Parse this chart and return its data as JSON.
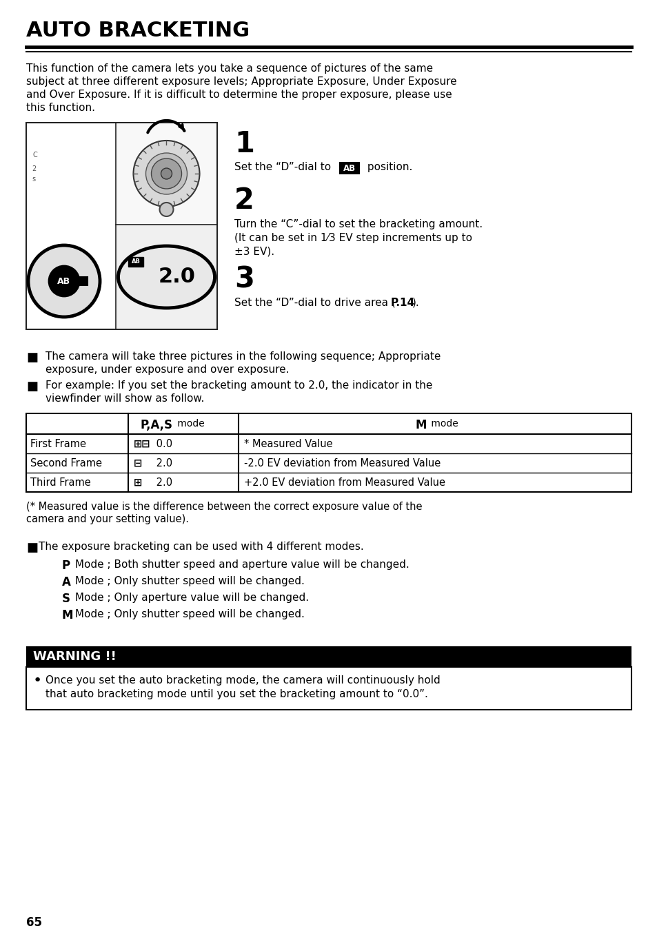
{
  "title": "AUTO BRACKETING",
  "bg_color": "#ffffff",
  "page_number": "65",
  "intro_lines": [
    "This function of the camera lets you take a sequence of pictures of the same",
    "subject at three different exposure levels; Appropriate Exposure, Under Exposure",
    "and Over Exposure. If it is difficult to determine the proper exposure, please use",
    "this function."
  ],
  "step1_num": "1",
  "step1_pre": "Set the “D”-dial to ",
  "step1_ab": "AB",
  "step1_post": " position.",
  "step2_num": "2",
  "step2_lines": [
    "Turn the “C”-dial to set the bracketing amount.",
    "(It can be set in 1⁄3 EV step increments up to",
    "±3 EV)."
  ],
  "step3_num": "3",
  "step3_pre": "Set the “D”-dial to drive area (",
  "step3_bold": "P.14",
  "step3_post": ").",
  "bullet1_lines": [
    "The camera will take three pictures in the following sequence; Appropriate",
    "exposure, under exposure and over exposure."
  ],
  "bullet2_lines": [
    "For example: If you set the bracketing amount to 2.0, the indicator in the",
    "viewfinder will show as follow."
  ],
  "table_col2_bold": "P,A,S",
  "table_col2_normal": " mode",
  "table_col3_bold": "M",
  "table_col3_normal": " mode",
  "table_rows": [
    [
      "First Frame",
      "* Measured Value"
    ],
    [
      "Second Frame",
      "-2.0 EV deviation from Measured Value"
    ],
    [
      "Third Frame",
      "+2.0 EV deviation from Measured Value"
    ]
  ],
  "footnote_lines": [
    "(* Measured value is the difference between the correct exposure value of the",
    "camera and your setting value)."
  ],
  "bullet3_intro": "The exposure bracketing can be used with 4 different modes.",
  "modes": [
    [
      "P",
      " Mode ; Both shutter speed and aperture value will be changed."
    ],
    [
      "A",
      " Mode ; Only shutter speed will be changed."
    ],
    [
      "S",
      " Mode ; Only aperture value will be changed."
    ],
    [
      "M",
      " Mode ; Only shutter speed will be changed."
    ]
  ],
  "warning_title": "WARNING !!",
  "warning_lines": [
    "Once you set the auto bracketing mode, the camera will continuously hold",
    "that auto bracketing mode until you set the bracketing amount to “0.0”."
  ]
}
